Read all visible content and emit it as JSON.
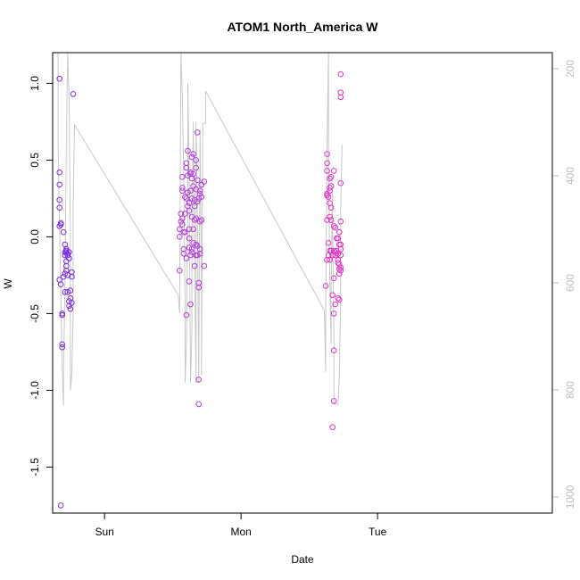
{
  "chart_data": {
    "type": "scatter",
    "title": "ATOM1 North_America W",
    "xlabel": "Date",
    "ylabel": "W",
    "xlim": [
      -0.38,
      3.28
    ],
    "ylim": [
      -1.8,
      1.2
    ],
    "x_ticks": [
      {
        "value": 0,
        "label": "Sun"
      },
      {
        "value": 1,
        "label": "Mon"
      },
      {
        "value": 2,
        "label": "Tue"
      }
    ],
    "y_ticks": [
      -1.5,
      -1.0,
      -0.5,
      0.0,
      0.5,
      1.0
    ],
    "y_tick_labels": [
      "-1.5",
      "-1.0",
      "-0.5",
      "0.0",
      "0.5",
      "1.0"
    ],
    "right_axis": {
      "color": "#bebebe",
      "ylim_reversed": [
        1030,
        170
      ],
      "ticks": [
        200,
        400,
        600,
        800,
        1000
      ],
      "tick_labels": [
        "200",
        "400",
        "600",
        "800",
        "1000"
      ]
    },
    "colors": {
      "day1": "#7b2ee0",
      "day2": "#b43cdc",
      "day3": "#e632c8",
      "line": "#c8c8c8"
    },
    "series": [
      {
        "color": "#7b2ee0",
        "points": [
          [
            -0.33,
            1.03
          ],
          [
            -0.33,
            0.42
          ],
          [
            -0.33,
            0.34
          ],
          [
            -0.33,
            0.24
          ],
          [
            -0.33,
            0.19
          ],
          [
            -0.33,
            0.07
          ],
          [
            -0.32,
            0.09
          ],
          [
            -0.32,
            0.08
          ],
          [
            -0.33,
            -0.28
          ],
          [
            -0.32,
            -0.31
          ],
          [
            -0.31,
            -0.5
          ],
          [
            -0.31,
            -0.51
          ],
          [
            -0.31,
            -0.7
          ],
          [
            -0.31,
            -0.72
          ],
          [
            -0.32,
            -1.75
          ],
          [
            -0.3,
            0.03
          ],
          [
            -0.29,
            -0.05
          ],
          [
            -0.29,
            -0.1
          ],
          [
            -0.29,
            -0.12
          ],
          [
            -0.29,
            -0.24
          ],
          [
            -0.3,
            -0.26
          ],
          [
            -0.29,
            -0.36
          ],
          [
            -0.28,
            -0.08
          ],
          [
            -0.28,
            -0.09
          ],
          [
            -0.28,
            -0.1
          ],
          [
            -0.28,
            -0.16
          ],
          [
            -0.28,
            -0.19
          ],
          [
            -0.28,
            -0.22
          ],
          [
            -0.27,
            -0.25
          ],
          [
            -0.27,
            -0.11
          ],
          [
            -0.27,
            -0.12
          ],
          [
            -0.26,
            -0.1
          ],
          [
            -0.26,
            -0.14
          ],
          [
            -0.27,
            -0.36
          ],
          [
            -0.26,
            -0.42
          ],
          [
            -0.25,
            -0.4
          ],
          [
            -0.25,
            -0.47
          ],
          [
            -0.25,
            -0.35
          ],
          [
            -0.24,
            -0.43
          ],
          [
            -0.24,
            -0.23
          ],
          [
            -0.24,
            -0.26
          ],
          [
            -0.26,
            -0.45
          ],
          [
            -0.23,
            0.93
          ]
        ]
      },
      {
        "color": "#b43cdc",
        "points": [
          [
            0.55,
            -0.22
          ],
          [
            0.55,
            0.0
          ],
          [
            0.55,
            0.05
          ],
          [
            0.56,
            0.15
          ],
          [
            0.56,
            0.1
          ],
          [
            0.57,
            0.3
          ],
          [
            0.57,
            0.32
          ],
          [
            0.57,
            0.39
          ],
          [
            0.57,
            0.12
          ],
          [
            0.57,
            0.08
          ],
          [
            0.58,
            -0.08
          ],
          [
            0.58,
            -0.11
          ],
          [
            0.58,
            0.03
          ],
          [
            0.59,
            0.03
          ],
          [
            0.59,
            0.26
          ],
          [
            0.59,
            0.15
          ],
          [
            0.6,
            0.45
          ],
          [
            0.6,
            0.48
          ],
          [
            0.6,
            0.25
          ],
          [
            0.6,
            -0.14
          ],
          [
            0.6,
            -0.51
          ],
          [
            0.61,
            0.56
          ],
          [
            0.61,
            0.4
          ],
          [
            0.61,
            0.29
          ],
          [
            0.61,
            0.2
          ],
          [
            0.62,
            -0.07
          ],
          [
            0.62,
            -0.01
          ],
          [
            0.62,
            0.05
          ],
          [
            0.62,
            0.22
          ],
          [
            0.62,
            0.17
          ],
          [
            0.62,
            -0.29
          ],
          [
            0.63,
            0.42
          ],
          [
            0.63,
            0.41
          ],
          [
            0.63,
            0.3
          ],
          [
            0.63,
            -0.12
          ],
          [
            0.63,
            -0.44
          ],
          [
            0.64,
            0.52
          ],
          [
            0.64,
            0.38
          ],
          [
            0.64,
            0.25
          ],
          [
            0.64,
            0.13
          ],
          [
            0.64,
            -0.08
          ],
          [
            0.64,
            -0.1
          ],
          [
            0.65,
            0.54
          ],
          [
            0.65,
            0.41
          ],
          [
            0.65,
            0.33
          ],
          [
            0.65,
            0.05
          ],
          [
            0.65,
            -0.04
          ],
          [
            0.66,
            0.24
          ],
          [
            0.66,
            0.2
          ],
          [
            0.66,
            0.11
          ],
          [
            0.66,
            -0.19
          ],
          [
            0.67,
            0.5
          ],
          [
            0.67,
            0.45
          ],
          [
            0.67,
            0.31
          ],
          [
            0.67,
            0.12
          ],
          [
            0.67,
            -0.05
          ],
          [
            0.67,
            -0.12
          ],
          [
            0.68,
            0.68
          ],
          [
            0.68,
            0.37
          ],
          [
            0.68,
            0.23
          ],
          [
            0.68,
            -0.06
          ],
          [
            0.68,
            -0.12
          ],
          [
            0.69,
            0.25
          ],
          [
            0.69,
            -0.3
          ],
          [
            0.69,
            -0.33
          ],
          [
            0.69,
            -0.93
          ],
          [
            0.69,
            -1.09
          ],
          [
            0.7,
            0.3
          ],
          [
            0.7,
            0.28
          ],
          [
            0.7,
            0.1
          ],
          [
            0.7,
            -0.08
          ],
          [
            0.7,
            -0.11
          ],
          [
            0.71,
            0.34
          ],
          [
            0.71,
            0.26
          ],
          [
            0.71,
            0.11
          ],
          [
            0.73,
            0.36
          ],
          [
            0.73,
            -0.19
          ]
        ]
      },
      {
        "color": "#e632c8",
        "points": [
          [
            1.62,
            -0.32
          ],
          [
            1.63,
            0.54
          ],
          [
            1.63,
            0.48
          ],
          [
            1.63,
            0.43
          ],
          [
            1.63,
            0.27
          ],
          [
            1.63,
            0.28
          ],
          [
            1.63,
            0.11
          ],
          [
            1.63,
            -0.15
          ],
          [
            1.64,
            0.26
          ],
          [
            1.64,
            -0.04
          ],
          [
            1.64,
            -0.12
          ],
          [
            1.65,
            0.38
          ],
          [
            1.65,
            0.32
          ],
          [
            1.65,
            0.3
          ],
          [
            1.65,
            0.22
          ],
          [
            1.65,
            0.13
          ],
          [
            1.65,
            -0.09
          ],
          [
            1.65,
            -0.15
          ],
          [
            1.66,
            0.39
          ],
          [
            1.66,
            0.33
          ],
          [
            1.66,
            0.19
          ],
          [
            1.66,
            0.11
          ],
          [
            1.66,
            -0.09
          ],
          [
            1.67,
            -0.12
          ],
          [
            1.67,
            -0.38
          ],
          [
            1.67,
            -1.24
          ],
          [
            1.68,
            0.43
          ],
          [
            1.68,
            0.07
          ],
          [
            1.68,
            -0.09
          ],
          [
            1.68,
            -0.27
          ],
          [
            1.68,
            -0.5
          ],
          [
            1.68,
            -1.07
          ],
          [
            1.68,
            -0.74
          ],
          [
            1.69,
            0.06
          ],
          [
            1.69,
            -0.1
          ],
          [
            1.69,
            -0.12
          ],
          [
            1.69,
            -0.44
          ],
          [
            1.7,
            -0.01
          ],
          [
            1.7,
            -0.09
          ],
          [
            1.71,
            -0.11
          ],
          [
            1.71,
            -0.15
          ],
          [
            1.71,
            -0.17
          ],
          [
            1.71,
            -0.4
          ],
          [
            1.71,
            -0.01
          ],
          [
            1.72,
            0.03
          ],
          [
            1.72,
            -0.05
          ],
          [
            1.72,
            -0.18
          ],
          [
            1.72,
            -0.21
          ],
          [
            1.72,
            -0.24
          ],
          [
            1.72,
            -0.41
          ],
          [
            1.73,
            1.06
          ],
          [
            1.73,
            0.94
          ],
          [
            1.73,
            0.91
          ],
          [
            1.73,
            0.35
          ],
          [
            1.73,
            0.1
          ],
          [
            1.73,
            -0.05
          ],
          [
            1.73,
            -0.08
          ],
          [
            1.73,
            -0.12
          ],
          [
            1.73,
            -0.2
          ],
          [
            1.73,
            -0.22
          ]
        ]
      }
    ],
    "line_series": {
      "color": "#c8c8c8",
      "points": [
        [
          -0.34,
          1.2
        ],
        [
          -0.34,
          0.6
        ],
        [
          -0.33,
          0.1
        ],
        [
          -0.32,
          -0.4
        ],
        [
          -0.31,
          -0.85
        ],
        [
          -0.3,
          -1.1
        ],
        [
          -0.3,
          -0.9
        ],
        [
          -0.29,
          -0.3
        ],
        [
          -0.28,
          0.6
        ],
        [
          -0.27,
          1.2
        ],
        [
          -0.26,
          0.9
        ],
        [
          -0.25,
          0.0
        ],
        [
          -0.25,
          -1.0
        ],
        [
          -0.24,
          -0.9
        ],
        [
          -0.23,
          -0.5
        ],
        [
          -0.23,
          0.2
        ],
        [
          -0.22,
          0.73
        ],
        [
          0.54,
          -0.38
        ],
        [
          0.55,
          -0.5
        ],
        [
          0.56,
          1.2
        ],
        [
          0.57,
          0.9
        ],
        [
          0.58,
          0.4
        ],
        [
          0.59,
          -0.4
        ],
        [
          0.59,
          -0.95
        ],
        [
          0.6,
          -0.7
        ],
        [
          0.61,
          0.2
        ],
        [
          0.61,
          1.0
        ],
        [
          0.62,
          0.4
        ],
        [
          0.63,
          -0.95
        ],
        [
          0.64,
          -0.6
        ],
        [
          0.64,
          0.0
        ],
        [
          0.65,
          0.75
        ],
        [
          0.66,
          -0.2
        ],
        [
          0.67,
          -0.95
        ],
        [
          0.67,
          0.75
        ],
        [
          0.68,
          0.2
        ],
        [
          0.69,
          -0.95
        ],
        [
          0.7,
          0.7
        ],
        [
          0.71,
          -0.3
        ],
        [
          0.71,
          -0.9
        ],
        [
          0.72,
          0.74
        ],
        [
          0.74,
          0.74
        ],
        [
          0.74,
          0.95
        ],
        [
          1.61,
          -0.48
        ],
        [
          1.62,
          -0.88
        ],
        [
          1.62,
          -0.5
        ],
        [
          1.63,
          0.6
        ],
        [
          1.64,
          1.2
        ],
        [
          1.64,
          0.6
        ],
        [
          1.65,
          -0.3
        ],
        [
          1.66,
          -0.7
        ],
        [
          1.66,
          -0.3
        ],
        [
          1.67,
          0.3
        ],
        [
          1.67,
          0.1
        ],
        [
          1.68,
          -0.6
        ],
        [
          1.68,
          -1.09
        ],
        [
          1.7,
          -1.09
        ],
        [
          1.71,
          -1.09
        ],
        [
          1.72,
          -0.9
        ],
        [
          1.73,
          -0.4
        ],
        [
          1.73,
          0.2
        ],
        [
          1.74,
          0.6
        ]
      ]
    }
  }
}
